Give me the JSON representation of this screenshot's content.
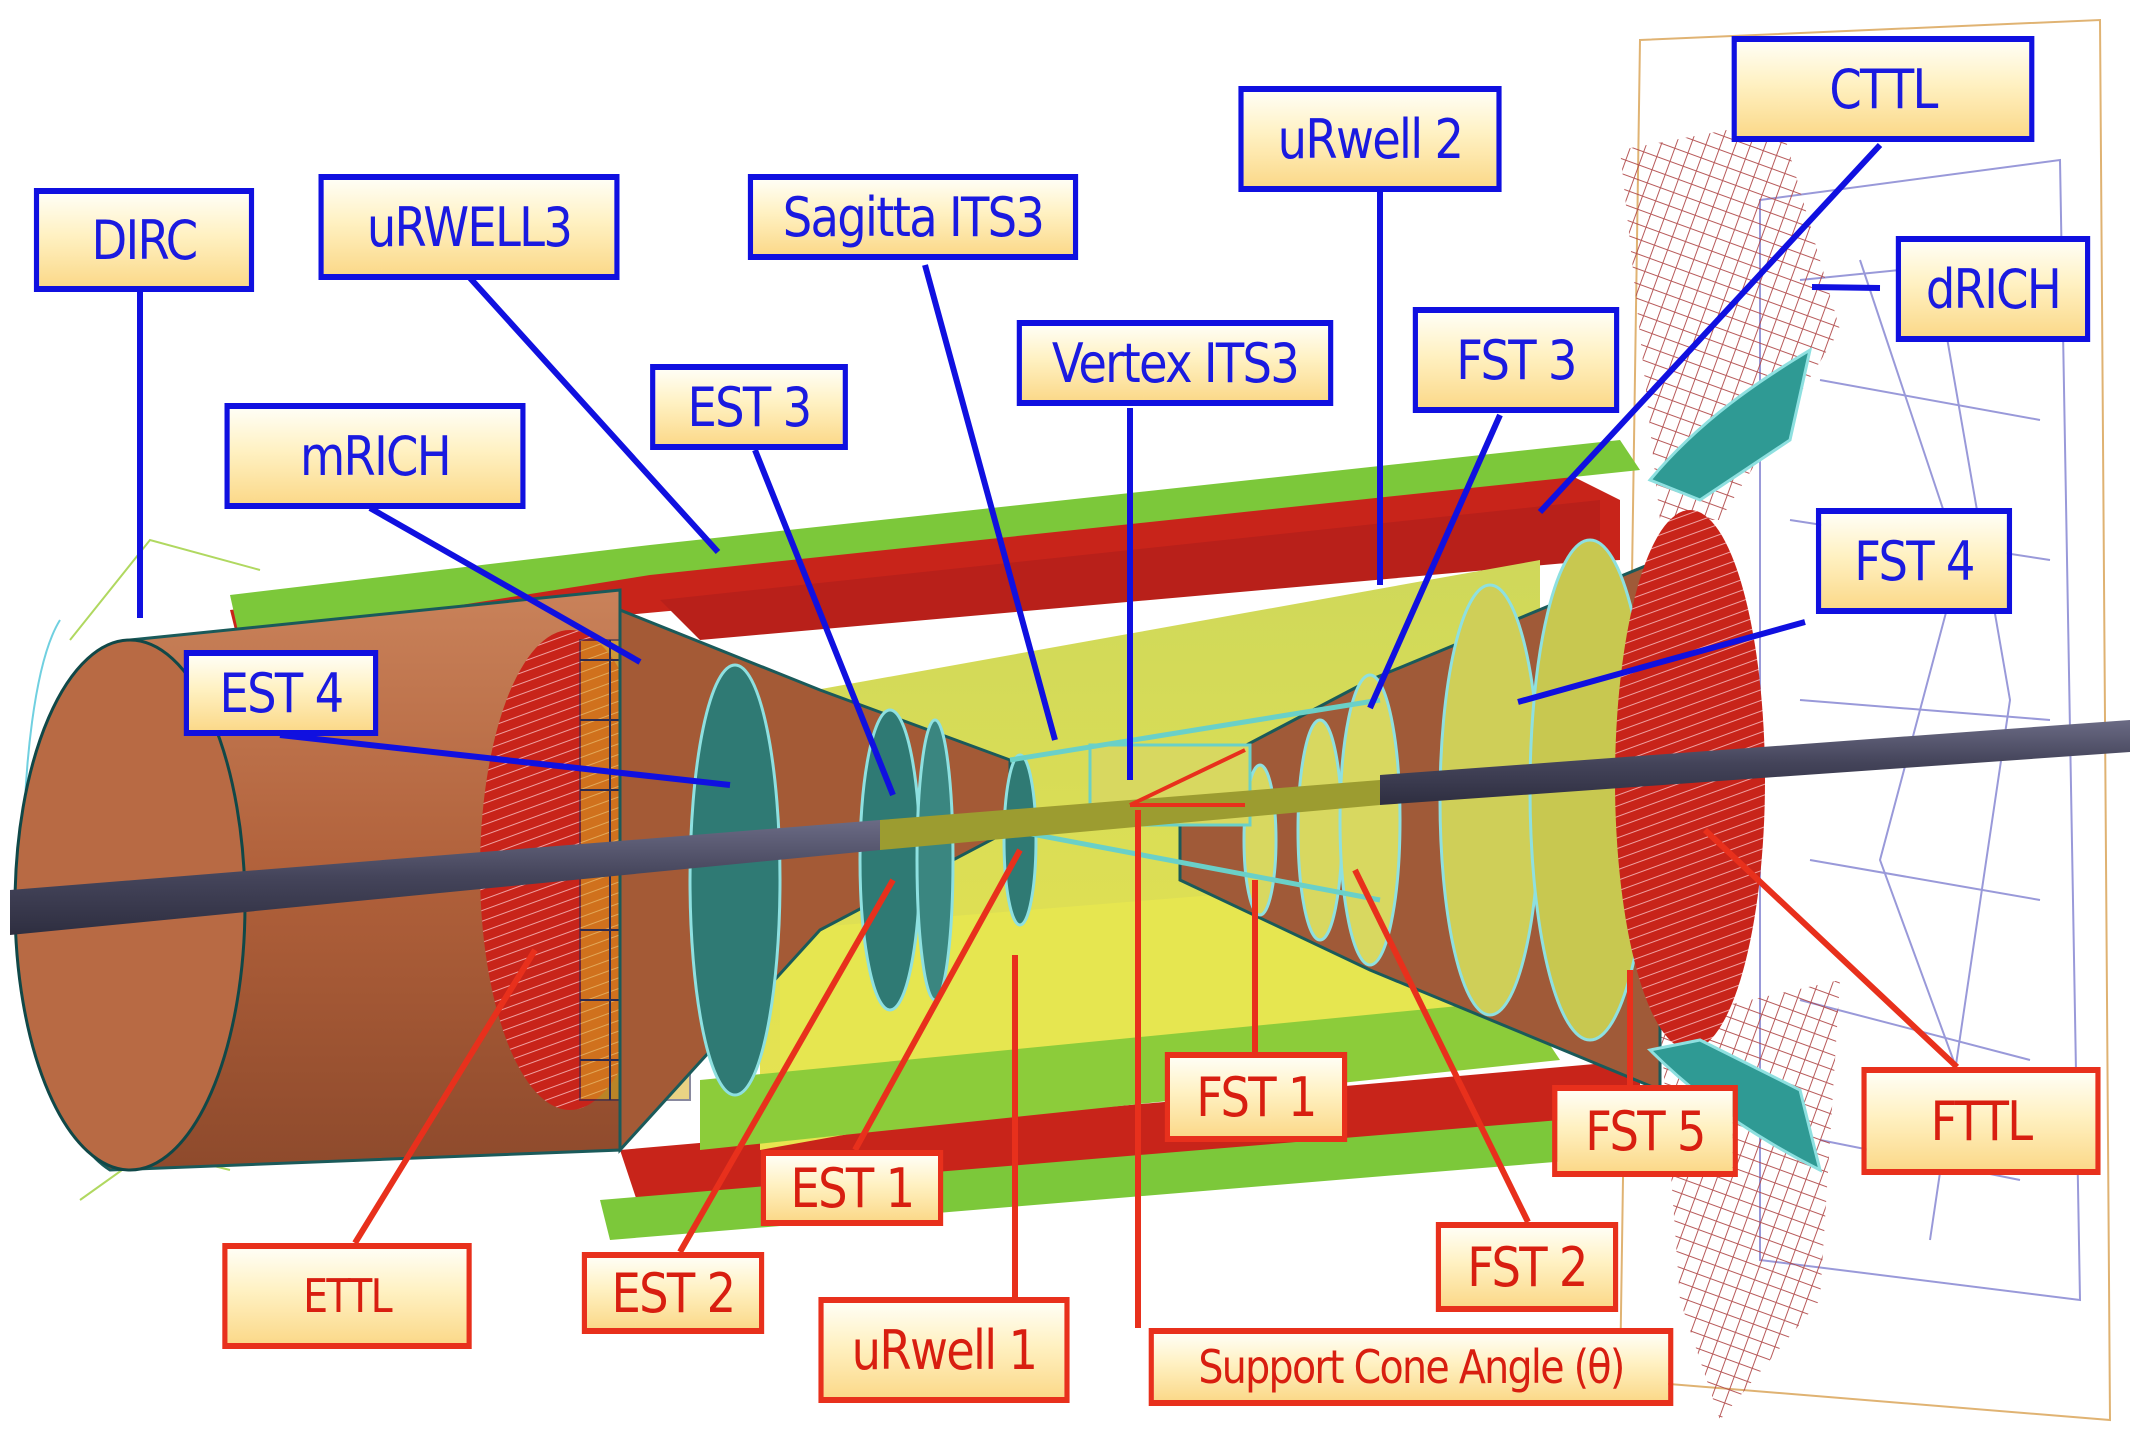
{
  "labels_blue": {
    "dirc": "DIRC",
    "urwell3": "uRWELL3",
    "sagitta": "Sagitta ITS3",
    "urwell2": "uRwell 2",
    "cttl": "CTTL",
    "drich": "dRICH",
    "vertex": "Vertex ITS3",
    "fst3": "FST 3",
    "est3": "EST 3",
    "mrich": "mRICH",
    "fst4": "FST 4",
    "est4": "EST 4"
  },
  "labels_red": {
    "fst1": "FST 1",
    "fttl": "FTTL",
    "fst5": "FST 5",
    "est1": "EST 1",
    "fst2": "FST 2",
    "ettl": "ETTL",
    "est2": "EST 2",
    "urwell1": "uRwell 1",
    "support_cone": "Support Cone Angle (θ)"
  },
  "colors": {
    "label_blue": "#1010e0",
    "label_red": "#e8301c",
    "barrel_brown": "#b5683f",
    "barrel_green": "#6fc83a",
    "layer_red": "#c8241a",
    "layer_yellow": "#e2e24a",
    "disk_teal": "#2f7a74",
    "beampipe": "#4a4a62"
  }
}
